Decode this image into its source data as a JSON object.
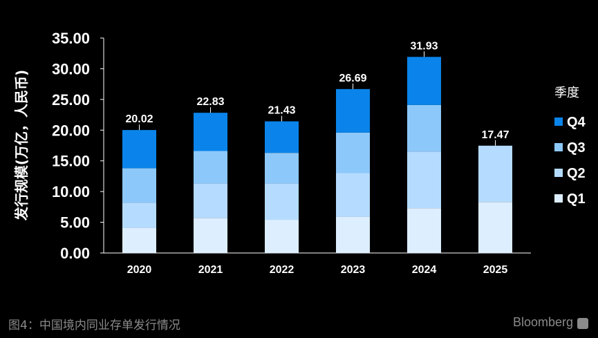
{
  "chart_data": {
    "type": "bar",
    "stacked": true,
    "categories": [
      "2020",
      "2021",
      "2022",
      "2023",
      "2024",
      "2025"
    ],
    "series": [
      {
        "name": "Q1",
        "color": "#ddeeff",
        "values": [
          4.1,
          5.7,
          5.4,
          5.9,
          7.3,
          8.3
        ]
      },
      {
        "name": "Q2",
        "color": "#b5dcff",
        "values": [
          4.1,
          5.6,
          5.9,
          7.1,
          9.2,
          9.17
        ]
      },
      {
        "name": "Q3",
        "color": "#8dc8fa",
        "values": [
          5.6,
          5.3,
          5.0,
          6.6,
          7.6,
          0
        ]
      },
      {
        "name": "Q4",
        "color": "#0a84ea",
        "values": [
          6.22,
          6.23,
          5.13,
          7.09,
          7.83,
          0
        ]
      }
    ],
    "totals": [
      "20.02",
      "22.83",
      "21.43",
      "26.69",
      "31.93",
      "17.47"
    ],
    "ylabel": "发行规模(万亿，人民币)",
    "xlabel": "",
    "ylim": [
      0,
      35
    ],
    "yticks": [
      "0.00",
      "5.00",
      "10.00",
      "15.00",
      "20.00",
      "25.00",
      "30.00",
      "35.00"
    ],
    "legend": {
      "title": "季度",
      "position": "right",
      "order": [
        "Q4",
        "Q3",
        "Q2",
        "Q1"
      ]
    },
    "grid": false
  },
  "caption": "图4：中国境内同业存单发行情况",
  "brand": "Bloomberg"
}
